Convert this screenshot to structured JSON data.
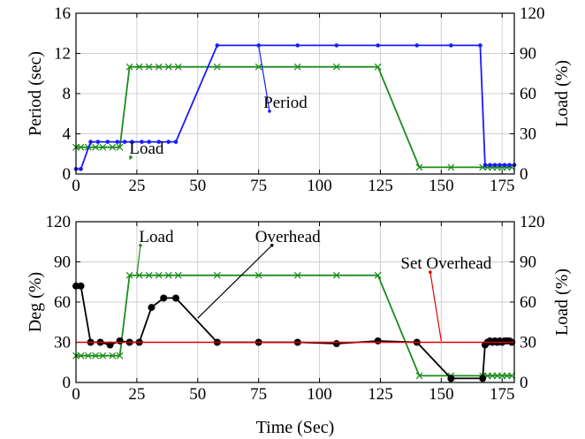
{
  "colors": {
    "period": "#1a1aff",
    "load": "#1a8c1a",
    "overhead": "#000000",
    "set_overhead": "#e00000"
  },
  "chart_data": [
    {
      "type": "line",
      "xlim": [
        0,
        180
      ],
      "x_ticks": [
        0,
        25,
        50,
        75,
        100,
        125,
        150,
        175
      ],
      "ylabel": "Period (sec)",
      "ylim": [
        0,
        16
      ],
      "y_ticks": [
        0,
        4,
        8,
        12,
        16
      ],
      "y2label": "Load (%)",
      "y2lim": [
        0,
        120
      ],
      "y2_ticks": [
        0,
        30,
        60,
        90,
        120
      ],
      "grid": true,
      "series": [
        {
          "name": "Period",
          "axis": "left",
          "color_key": "period",
          "marker": "dot",
          "x": [
            0,
            2,
            6,
            9,
            13,
            17,
            20,
            23,
            27,
            30,
            34,
            38,
            41,
            58,
            75,
            91,
            107,
            124,
            140,
            154,
            166,
            168,
            170,
            172,
            174,
            176,
            178,
            180
          ],
          "y": [
            0.5,
            0.5,
            3.2,
            3.2,
            3.2,
            3.2,
            3.2,
            3.2,
            3.2,
            3.2,
            3.2,
            3.2,
            3.2,
            12.8,
            12.8,
            12.8,
            12.8,
            12.8,
            12.8,
            12.8,
            12.8,
            0.9,
            0.9,
            0.9,
            0.9,
            0.9,
            0.9,
            0.9
          ]
        },
        {
          "name": "Load",
          "axis": "right",
          "color_key": "load",
          "marker": "x",
          "x": [
            0,
            2,
            5,
            8,
            11,
            15,
            18,
            22,
            26,
            30,
            34,
            38,
            42,
            58,
            75,
            91,
            107,
            124,
            141,
            154,
            167,
            169,
            171,
            173,
            175,
            177,
            179
          ],
          "y": [
            20,
            20,
            20,
            20,
            20,
            20,
            20,
            80,
            80,
            80,
            80,
            80,
            80,
            80,
            80,
            80,
            80,
            80,
            5,
            5,
            5,
            5,
            5,
            5,
            5,
            5,
            5
          ]
        }
      ],
      "annotations": [
        {
          "text": "Load",
          "series": "Load",
          "label_at": [
            29,
            15.2
          ],
          "points_to": [
            22,
            10.6
          ]
        },
        {
          "text": "Period",
          "series": "Period",
          "label_at": [
            86,
            6.6
          ],
          "points_to": [
            75,
            12.8
          ]
        }
      ]
    },
    {
      "type": "line",
      "xlim": [
        0,
        180
      ],
      "x_ticks": [
        0,
        25,
        50,
        75,
        100,
        125,
        150,
        175
      ],
      "xlabel": "Time (Sec)",
      "ylabel": "Deg (%)",
      "ylim": [
        0,
        120
      ],
      "y_ticks": [
        0,
        30,
        60,
        90,
        120
      ],
      "y2label": "Load (%)",
      "y2lim": [
        0,
        120
      ],
      "y2_ticks": [
        0,
        30,
        60,
        90,
        120
      ],
      "grid": true,
      "series": [
        {
          "name": "Overhead",
          "axis": "left",
          "color_key": "overhead",
          "marker": "dot",
          "x": [
            0,
            2,
            6,
            10,
            14,
            18,
            22,
            26,
            31,
            36,
            41,
            58,
            75,
            91,
            107,
            124,
            140,
            154,
            167,
            168,
            169,
            170,
            171,
            172,
            173,
            174,
            175,
            176,
            177,
            178,
            179
          ],
          "y": [
            72,
            72,
            30,
            30,
            28,
            31,
            30,
            30,
            56,
            63,
            63,
            30,
            30,
            30,
            29,
            31,
            30,
            3,
            3,
            28,
            30,
            31,
            30,
            31,
            30,
            31,
            30,
            31,
            31,
            31,
            30
          ]
        },
        {
          "name": "Load",
          "axis": "right",
          "color_key": "load",
          "marker": "x",
          "x": [
            0,
            2,
            5,
            8,
            11,
            15,
            18,
            22,
            26,
            30,
            34,
            38,
            42,
            58,
            75,
            91,
            107,
            124,
            141,
            154,
            167,
            169,
            171,
            173,
            175,
            177,
            179
          ],
          "y": [
            20,
            20,
            20,
            20,
            20,
            20,
            20,
            80,
            80,
            80,
            80,
            80,
            80,
            80,
            80,
            80,
            80,
            80,
            5,
            5,
            5,
            5,
            5,
            5,
            5,
            5,
            5
          ]
        },
        {
          "name": "Set Overhead",
          "axis": "left",
          "color_key": "set_overhead",
          "marker": "none",
          "x": [
            0,
            180
          ],
          "y": [
            30,
            30
          ]
        }
      ],
      "annotations": [
        {
          "text": "Load",
          "series": "Load",
          "label_at": [
            33,
            105
          ],
          "points_to": [
            25,
            80
          ]
        },
        {
          "text": "Overhead",
          "series": "Overhead",
          "label_at": [
            87,
            105
          ],
          "points_to": [
            50,
            48
          ]
        },
        {
          "text": "Set Overhead",
          "series": "Set Overhead",
          "label_at": [
            152,
            85
          ],
          "points_to": [
            150,
            31
          ]
        }
      ]
    }
  ]
}
